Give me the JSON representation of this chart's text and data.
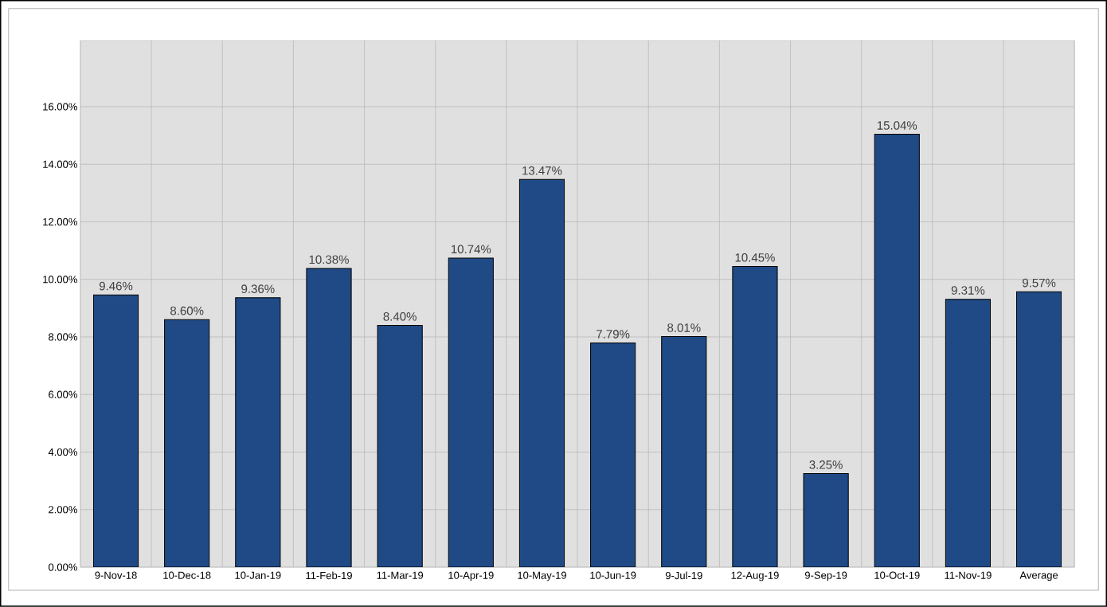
{
  "chart_data": {
    "type": "bar",
    "categories": [
      "9-Nov-18",
      "10-Dec-18",
      "10-Jan-19",
      "11-Feb-19",
      "11-Mar-19",
      "10-Apr-19",
      "10-May-19",
      "10-Jun-19",
      "9-Jul-19",
      "12-Aug-19",
      "9-Sep-19",
      "10-Oct-19",
      "11-Nov-19",
      "Average"
    ],
    "values": [
      9.46,
      8.6,
      9.36,
      10.38,
      8.4,
      10.74,
      13.47,
      7.79,
      8.01,
      10.45,
      3.25,
      15.04,
      9.31,
      9.57
    ],
    "value_labels": [
      "9.46%",
      "8.60%",
      "9.36%",
      "10.38%",
      "8.40%",
      "10.74%",
      "13.47%",
      "7.79%",
      "8.01%",
      "10.45%",
      "3.25%",
      "15.04%",
      "9.31%",
      "9.57%"
    ],
    "color": "#1f4a86",
    "ylim": [
      0,
      18.3
    ],
    "yticks": [
      {
        "value": 0,
        "label": "0.00%"
      },
      {
        "value": 2,
        "label": "2.00%"
      },
      {
        "value": 4,
        "label": "4.00%"
      },
      {
        "value": 6,
        "label": "6.00%"
      },
      {
        "value": 8,
        "label": "8.00%"
      },
      {
        "value": 10,
        "label": "10.00%"
      },
      {
        "value": 12,
        "label": "12.00%"
      },
      {
        "value": 14,
        "label": "14.00%"
      },
      {
        "value": 16,
        "label": "16.00%"
      }
    ],
    "grid": true
  }
}
